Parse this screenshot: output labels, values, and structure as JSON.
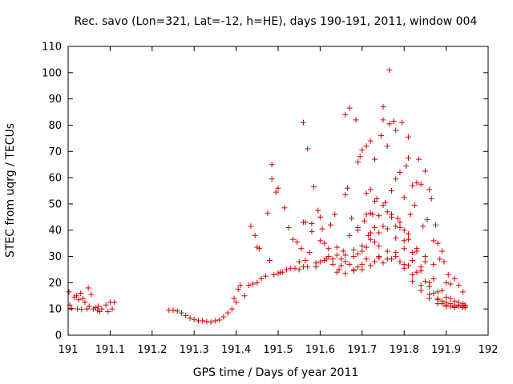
{
  "chart_data": {
    "type": "scatter",
    "title": "Rec. savo (Lon=321, Lat=-12, h=HE), days 190-191, 2011, window 004",
    "xlabel": "GPS time / Days of year 2011",
    "ylabel": "STEC from uqrg / TECUs",
    "xlim": [
      191,
      192
    ],
    "ylim": [
      0,
      110
    ],
    "xticks": [
      "191",
      "191.1",
      "191.2",
      "191.3",
      "191.4",
      "191.5",
      "191.6",
      "191.7",
      "191.8",
      "191.9",
      "192"
    ],
    "yticks": [
      "0",
      "10",
      "20",
      "30",
      "40",
      "50",
      "60",
      "70",
      "80",
      "90",
      "100",
      "110"
    ],
    "grid": false,
    "legend": "none",
    "marker": "+",
    "color": "#d40000",
    "points": [
      [
        191.002,
        16.5
      ],
      [
        191.004,
        11.5
      ],
      [
        191.008,
        10.2
      ],
      [
        191.015,
        14.5
      ],
      [
        191.02,
        15.0
      ],
      [
        191.022,
        10.0
      ],
      [
        191.025,
        13.5
      ],
      [
        191.03,
        16.0
      ],
      [
        191.032,
        9.8
      ],
      [
        191.035,
        14.0
      ],
      [
        191.04,
        12.5
      ],
      [
        191.045,
        10.0
      ],
      [
        191.048,
        18.0
      ],
      [
        191.05,
        11.0
      ],
      [
        191.055,
        15.5
      ],
      [
        191.06,
        10.0
      ],
      [
        191.065,
        10.5
      ],
      [
        191.07,
        9.5
      ],
      [
        191.072,
        11.0
      ],
      [
        191.075,
        9.0
      ],
      [
        191.08,
        10.0
      ],
      [
        191.09,
        11.5
      ],
      [
        191.095,
        9.0
      ],
      [
        191.1,
        12.5
      ],
      [
        191.105,
        10.0
      ],
      [
        191.11,
        12.5
      ],
      [
        191.24,
        9.5
      ],
      [
        191.25,
        9.5
      ],
      [
        191.26,
        9.2
      ],
      [
        191.27,
        8.5
      ],
      [
        191.28,
        7.5
      ],
      [
        191.29,
        6.5
      ],
      [
        191.3,
        6.0
      ],
      [
        191.31,
        5.5
      ],
      [
        191.32,
        5.5
      ],
      [
        191.33,
        5.2
      ],
      [
        191.34,
        5.0
      ],
      [
        191.35,
        5.5
      ],
      [
        191.36,
        5.8
      ],
      [
        191.37,
        7.0
      ],
      [
        191.38,
        8.5
      ],
      [
        191.39,
        10.0
      ],
      [
        191.395,
        14.0
      ],
      [
        191.4,
        12.5
      ],
      [
        191.405,
        17.5
      ],
      [
        191.41,
        19.0
      ],
      [
        191.42,
        15.0
      ],
      [
        191.43,
        19.0
      ],
      [
        191.44,
        19.5
      ],
      [
        191.45,
        20.0
      ],
      [
        191.435,
        41.5
      ],
      [
        191.445,
        38.0
      ],
      [
        191.45,
        33.5
      ],
      [
        191.455,
        33.0
      ],
      [
        191.46,
        21.5
      ],
      [
        191.47,
        22.5
      ],
      [
        191.475,
        46.5
      ],
      [
        191.48,
        28.5
      ],
      [
        191.485,
        65.0
      ],
      [
        191.485,
        59.5
      ],
      [
        191.49,
        23.0
      ],
      [
        191.495,
        54.5
      ],
      [
        191.5,
        56.0
      ],
      [
        191.5,
        23.5
      ],
      [
        191.505,
        24.0
      ],
      [
        191.51,
        24.0
      ],
      [
        191.515,
        48.5
      ],
      [
        191.52,
        25.0
      ],
      [
        191.525,
        41.0
      ],
      [
        191.53,
        25.5
      ],
      [
        191.535,
        36.5
      ],
      [
        191.54,
        25.5
      ],
      [
        191.545,
        35.5
      ],
      [
        191.55,
        28.0
      ],
      [
        191.555,
        33.0
      ],
      [
        191.56,
        26.0
      ],
      [
        191.56,
        81.0
      ],
      [
        191.565,
        28.5
      ],
      [
        191.565,
        43.0
      ],
      [
        191.57,
        71.0
      ],
      [
        191.575,
        31.5
      ],
      [
        191.58,
        42.5
      ],
      [
        191.585,
        56.5
      ],
      [
        191.59,
        26.0
      ],
      [
        191.595,
        47.5
      ],
      [
        191.6,
        45.0
      ],
      [
        191.6,
        28.0
      ],
      [
        191.605,
        40.5
      ],
      [
        191.61,
        35.0
      ],
      [
        191.615,
        29.0
      ],
      [
        191.62,
        30.0
      ],
      [
        191.625,
        42.0
      ],
      [
        191.63,
        27.0
      ],
      [
        191.635,
        46.0
      ],
      [
        191.64,
        33.5
      ],
      [
        191.645,
        25.0
      ],
      [
        191.65,
        29.0
      ],
      [
        191.655,
        32.0
      ],
      [
        191.66,
        84.0
      ],
      [
        191.66,
        53.5
      ],
      [
        191.665,
        56.0
      ],
      [
        191.67,
        86.5
      ],
      [
        191.675,
        44.5
      ],
      [
        191.68,
        25.0
      ],
      [
        191.685,
        82.0
      ],
      [
        191.69,
        66.0
      ],
      [
        191.69,
        40.0
      ],
      [
        191.695,
        68.0
      ],
      [
        191.7,
        70.5
      ],
      [
        191.7,
        27.0
      ],
      [
        191.705,
        43.5
      ],
      [
        191.71,
        72.0
      ],
      [
        191.71,
        54.0
      ],
      [
        191.715,
        38.0
      ],
      [
        191.72,
        74.0
      ],
      [
        191.72,
        55.5
      ],
      [
        191.725,
        46.0
      ],
      [
        191.73,
        67.0
      ],
      [
        191.73,
        41.0
      ],
      [
        191.735,
        52.0
      ],
      [
        191.74,
        30.0
      ],
      [
        191.745,
        76.0
      ],
      [
        191.75,
        87.0
      ],
      [
        191.75,
        82.0
      ],
      [
        191.755,
        50.5
      ],
      [
        191.76,
        72.0
      ],
      [
        191.765,
        101.0
      ],
      [
        191.765,
        80.5
      ],
      [
        191.77,
        55.0
      ],
      [
        191.775,
        81.5
      ],
      [
        191.78,
        78.0
      ],
      [
        191.78,
        59.5
      ],
      [
        191.785,
        44.5
      ],
      [
        191.79,
        62.0
      ],
      [
        191.795,
        81.0
      ],
      [
        191.8,
        52.5
      ],
      [
        191.8,
        40.0
      ],
      [
        191.805,
        64.5
      ],
      [
        191.81,
        75.5
      ],
      [
        191.81,
        67.5
      ],
      [
        191.815,
        46.0
      ],
      [
        191.82,
        57.0
      ],
      [
        191.825,
        49.5
      ],
      [
        191.83,
        58.0
      ],
      [
        191.835,
        67.0
      ],
      [
        191.84,
        57.5
      ],
      [
        191.845,
        41.5
      ],
      [
        191.85,
        62.5
      ],
      [
        191.855,
        44.0
      ],
      [
        191.86,
        55.5
      ],
      [
        191.865,
        52.0
      ],
      [
        191.87,
        36.0
      ],
      [
        191.875,
        42.0
      ],
      [
        191.88,
        35.0
      ],
      [
        191.885,
        29.0
      ],
      [
        191.89,
        32.0
      ],
      [
        191.895,
        28.0
      ],
      [
        191.9,
        20.0
      ],
      [
        191.905,
        23.0
      ],
      [
        191.91,
        19.5
      ],
      [
        191.92,
        21.5
      ],
      [
        191.93,
        19.0
      ],
      [
        191.94,
        16.5
      ],
      [
        191.55,
        25.0
      ],
      [
        191.57,
        26.0
      ],
      [
        191.59,
        27.5
      ],
      [
        191.61,
        28.5
      ],
      [
        191.63,
        29.0
      ],
      [
        191.65,
        26.5
      ],
      [
        191.67,
        27.0
      ],
      [
        191.69,
        26.0
      ],
      [
        191.71,
        29.0
      ],
      [
        191.73,
        28.0
      ],
      [
        191.75,
        27.5
      ],
      [
        191.77,
        29.0
      ],
      [
        191.79,
        28.0
      ],
      [
        191.81,
        26.5
      ],
      [
        191.83,
        24.0
      ],
      [
        191.85,
        20.5
      ],
      [
        191.87,
        16.0
      ],
      [
        191.89,
        13.0
      ],
      [
        191.91,
        12.0
      ],
      [
        191.93,
        11.5
      ],
      [
        191.945,
        11.0
      ],
      [
        191.64,
        24.0
      ],
      [
        191.66,
        23.5
      ],
      [
        191.68,
        24.5
      ],
      [
        191.7,
        25.0
      ],
      [
        191.72,
        26.5
      ],
      [
        191.74,
        29.5
      ],
      [
        191.76,
        32.0
      ],
      [
        191.78,
        30.0
      ],
      [
        191.8,
        27.0
      ],
      [
        191.82,
        23.0
      ],
      [
        191.84,
        19.0
      ],
      [
        191.86,
        15.5
      ],
      [
        191.88,
        13.5
      ],
      [
        191.9,
        12.5
      ],
      [
        191.92,
        11.5
      ],
      [
        191.94,
        11.0
      ],
      [
        191.66,
        30.5
      ],
      [
        191.68,
        32.5
      ],
      [
        191.7,
        34.0
      ],
      [
        191.72,
        36.5
      ],
      [
        191.74,
        39.0
      ],
      [
        191.76,
        40.5
      ],
      [
        191.78,
        37.0
      ],
      [
        191.8,
        33.0
      ],
      [
        191.82,
        28.5
      ],
      [
        191.84,
        24.5
      ],
      [
        191.86,
        20.0
      ],
      [
        191.88,
        16.5
      ],
      [
        191.9,
        14.5
      ],
      [
        191.92,
        13.0
      ],
      [
        191.94,
        12.0
      ],
      [
        191.69,
        31.0
      ],
      [
        191.71,
        33.5
      ],
      [
        191.73,
        35.5
      ],
      [
        191.75,
        41.5
      ],
      [
        191.77,
        46.0
      ],
      [
        191.79,
        43.0
      ],
      [
        191.81,
        38.5
      ],
      [
        191.83,
        33.0
      ],
      [
        191.85,
        28.0
      ],
      [
        191.87,
        21.5
      ],
      [
        191.89,
        17.0
      ],
      [
        191.91,
        14.0
      ],
      [
        191.93,
        12.5
      ],
      [
        191.945,
        11.5
      ],
      [
        191.72,
        46.5
      ],
      [
        191.74,
        45.5
      ],
      [
        191.76,
        47.0
      ],
      [
        191.78,
        41.5
      ],
      [
        191.8,
        36.0
      ],
      [
        191.82,
        31.5
      ],
      [
        191.84,
        26.0
      ],
      [
        191.86,
        18.5
      ],
      [
        191.88,
        14.0
      ],
      [
        191.9,
        11.5
      ],
      [
        191.92,
        10.5
      ],
      [
        191.94,
        10.5
      ],
      [
        191.67,
        38.0
      ],
      [
        191.69,
        41.0
      ],
      [
        191.71,
        46.0
      ],
      [
        191.73,
        51.0
      ],
      [
        191.75,
        49.5
      ],
      [
        191.77,
        45.0
      ],
      [
        191.79,
        41.0
      ],
      [
        191.81,
        36.5
      ],
      [
        191.83,
        32.0
      ],
      [
        191.85,
        30.0
      ],
      [
        191.87,
        27.0
      ],
      [
        191.89,
        12.0
      ],
      [
        191.91,
        11.0
      ],
      [
        191.93,
        11.0
      ],
      [
        191.945,
        10.5
      ],
      [
        191.56,
        43.0
      ],
      [
        191.58,
        39.5
      ],
      [
        191.6,
        36.0
      ],
      [
        191.62,
        33.0
      ],
      [
        191.64,
        30.5
      ],
      [
        191.66,
        28.0
      ],
      [
        191.68,
        30.0
      ],
      [
        191.7,
        32.0
      ],
      [
        191.72,
        39.0
      ],
      [
        191.74,
        34.0
      ],
      [
        191.76,
        29.0
      ],
      [
        191.78,
        31.5
      ],
      [
        191.8,
        25.5
      ],
      [
        191.82,
        20.5
      ],
      [
        191.84,
        17.0
      ],
      [
        191.86,
        14.0
      ],
      [
        191.88,
        12.0
      ],
      [
        191.9,
        11.0
      ],
      [
        191.92,
        10.8
      ],
      [
        191.94,
        11.2
      ]
    ]
  }
}
